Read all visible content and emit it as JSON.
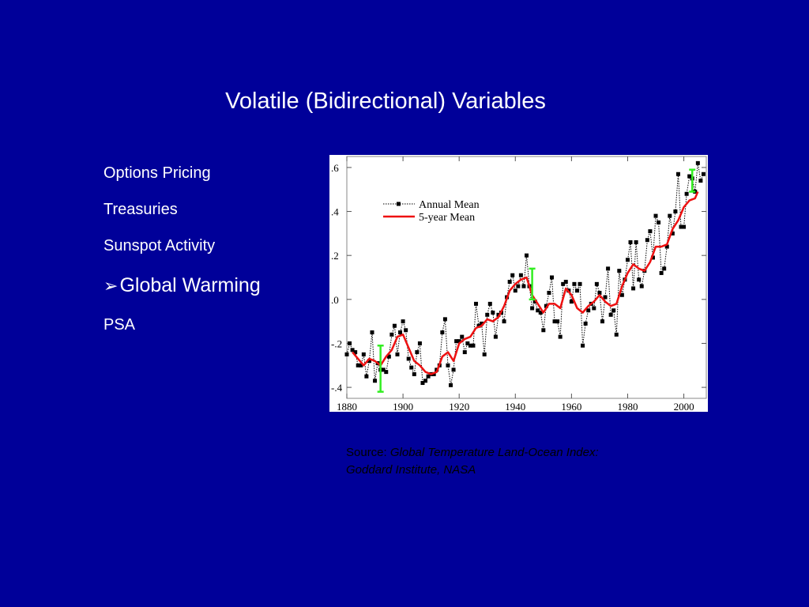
{
  "slide": {
    "title": "Volatile (Bidirectional) Variables",
    "bullets": [
      {
        "label": "Options Pricing",
        "selected": false
      },
      {
        "label": "Treasuries",
        "selected": false
      },
      {
        "label": "Sunspot Activity",
        "selected": false
      },
      {
        "label": "Global Warming",
        "selected": true,
        "marker": "➢"
      },
      {
        "label": "PSA",
        "selected": false
      }
    ],
    "source": {
      "prefix": "Source:",
      "line1": "Global Temperature Land-Ocean Index:",
      "line2": "Goddard Institute, NASA"
    }
  },
  "chart_data": {
    "type": "line",
    "title": "",
    "xlabel": "",
    "ylabel": "",
    "xlim": [
      1880,
      2008
    ],
    "ylim": [
      -0.45,
      0.65
    ],
    "xticks": [
      1880,
      1900,
      1920,
      1940,
      1960,
      1980,
      2000
    ],
    "xtick_labels": [
      "1880",
      "1900",
      "1920",
      "1940",
      "1960",
      "1980",
      "2000"
    ],
    "yticks": [
      -0.4,
      -0.2,
      0.0,
      0.2,
      0.4,
      0.6
    ],
    "ytick_labels": [
      "-.4",
      "-.2",
      ".0",
      ".2",
      ".4",
      ".6"
    ],
    "legend": {
      "position": "top-left",
      "entries": [
        "Annual Mean",
        "5-year Mean"
      ]
    },
    "colors": {
      "annual": "#000000",
      "smooth": "#ee1111",
      "error_bar": "#33ee22"
    },
    "series": [
      {
        "name": "Annual Mean",
        "style": "dotted-with-squares",
        "x": [
          1880,
          1881,
          1882,
          1883,
          1884,
          1885,
          1886,
          1887,
          1888,
          1889,
          1890,
          1891,
          1892,
          1893,
          1894,
          1895,
          1896,
          1897,
          1898,
          1899,
          1900,
          1901,
          1902,
          1903,
          1904,
          1905,
          1906,
          1907,
          1908,
          1909,
          1910,
          1911,
          1912,
          1913,
          1914,
          1915,
          1916,
          1917,
          1918,
          1919,
          1920,
          1921,
          1922,
          1923,
          1924,
          1925,
          1926,
          1927,
          1928,
          1929,
          1930,
          1931,
          1932,
          1933,
          1934,
          1935,
          1936,
          1937,
          1938,
          1939,
          1940,
          1941,
          1942,
          1943,
          1944,
          1945,
          1946,
          1947,
          1948,
          1949,
          1950,
          1951,
          1952,
          1953,
          1954,
          1955,
          1956,
          1957,
          1958,
          1959,
          1960,
          1961,
          1962,
          1963,
          1964,
          1965,
          1966,
          1967,
          1968,
          1969,
          1970,
          1971,
          1972,
          1973,
          1974,
          1975,
          1976,
          1977,
          1978,
          1979,
          1980,
          1981,
          1982,
          1983,
          1984,
          1985,
          1986,
          1987,
          1988,
          1989,
          1990,
          1991,
          1992,
          1993,
          1994,
          1995,
          1996,
          1997,
          1998,
          1999,
          2000,
          2001,
          2002,
          2003,
          2004,
          2005,
          2006,
          2007
        ],
        "y": [
          -0.25,
          -0.2,
          -0.23,
          -0.24,
          -0.3,
          -0.3,
          -0.25,
          -0.35,
          -0.28,
          -0.15,
          -0.37,
          -0.29,
          -0.32,
          -0.32,
          -0.33,
          -0.26,
          -0.16,
          -0.12,
          -0.25,
          -0.15,
          -0.1,
          -0.14,
          -0.27,
          -0.31,
          -0.34,
          -0.24,
          -0.2,
          -0.38,
          -0.37,
          -0.35,
          -0.34,
          -0.34,
          -0.32,
          -0.3,
          -0.15,
          -0.09,
          -0.3,
          -0.39,
          -0.32,
          -0.19,
          -0.19,
          -0.17,
          -0.24,
          -0.2,
          -0.21,
          -0.21,
          -0.02,
          -0.12,
          -0.11,
          -0.25,
          -0.07,
          -0.02,
          -0.06,
          -0.17,
          -0.07,
          -0.06,
          -0.1,
          0.01,
          0.08,
          0.11,
          0.04,
          0.06,
          0.11,
          0.06,
          0.2,
          0.06,
          -0.04,
          -0.01,
          -0.05,
          -0.06,
          -0.14,
          -0.03,
          0.03,
          0.1,
          -0.1,
          -0.1,
          -0.17,
          0.07,
          0.08,
          0.04,
          -0.01,
          0.07,
          0.04,
          0.07,
          -0.21,
          -0.11,
          -0.05,
          -0.02,
          -0.04,
          0.07,
          0.03,
          -0.1,
          0.01,
          0.14,
          -0.07,
          -0.05,
          -0.16,
          0.13,
          0.02,
          0.09,
          0.18,
          0.26,
          0.05,
          0.26,
          0.09,
          0.06,
          0.13,
          0.27,
          0.31,
          0.19,
          0.38,
          0.35,
          0.12,
          0.14,
          0.24,
          0.38,
          0.3,
          0.4,
          0.57,
          0.33,
          0.33,
          0.48,
          0.56,
          0.55,
          0.49,
          0.62,
          0.54,
          0.57
        ]
      },
      {
        "name": "5-year Mean",
        "style": "solid",
        "x": [
          1882,
          1884,
          1886,
          1888,
          1890,
          1892,
          1894,
          1896,
          1898,
          1900,
          1902,
          1904,
          1906,
          1908,
          1910,
          1912,
          1914,
          1916,
          1918,
          1920,
          1922,
          1924,
          1926,
          1928,
          1930,
          1932,
          1934,
          1936,
          1938,
          1940,
          1942,
          1944,
          1946,
          1948,
          1950,
          1952,
          1954,
          1956,
          1958,
          1960,
          1962,
          1964,
          1966,
          1968,
          1970,
          1972,
          1974,
          1976,
          1978,
          1980,
          1982,
          1984,
          1986,
          1988,
          1990,
          1992,
          1994,
          1996,
          1998,
          2000,
          2002,
          2004,
          2005
        ],
        "y": [
          -0.24,
          -0.27,
          -0.3,
          -0.27,
          -0.28,
          -0.3,
          -0.26,
          -0.23,
          -0.17,
          -0.16,
          -0.22,
          -0.28,
          -0.3,
          -0.33,
          -0.34,
          -0.33,
          -0.26,
          -0.24,
          -0.28,
          -0.2,
          -0.18,
          -0.17,
          -0.13,
          -0.12,
          -0.09,
          -0.1,
          -0.08,
          -0.03,
          0.04,
          0.07,
          0.09,
          0.1,
          0.02,
          -0.02,
          -0.06,
          -0.02,
          -0.02,
          -0.04,
          0.05,
          0.02,
          -0.04,
          -0.06,
          -0.03,
          -0.01,
          0.02,
          -0.01,
          -0.03,
          -0.02,
          0.06,
          0.12,
          0.16,
          0.14,
          0.13,
          0.17,
          0.24,
          0.24,
          0.25,
          0.32,
          0.36,
          0.42,
          0.45,
          0.46,
          0.49
        ]
      }
    ],
    "error_bars": [
      {
        "x": 1892,
        "low": -0.42,
        "high": -0.21
      },
      {
        "x": 1946,
        "low": 0.0,
        "high": 0.14
      },
      {
        "x": 2003,
        "low": 0.49,
        "high": 0.59
      }
    ]
  }
}
